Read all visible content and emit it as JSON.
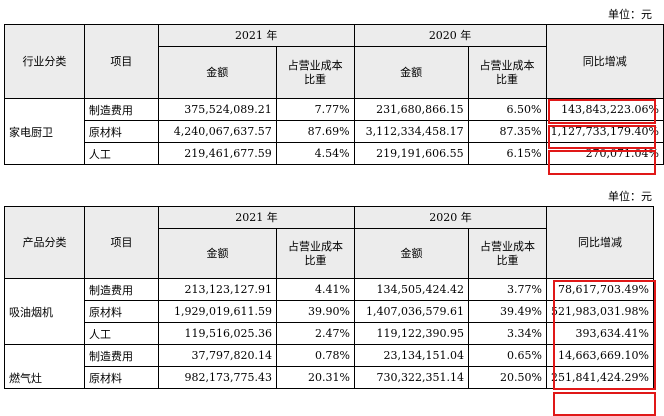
{
  "unit_label": "单位：元",
  "table1": {
    "headers": {
      "category": "行业分类",
      "item": "项目",
      "year_a": "2021 年",
      "year_b": "2020 年",
      "amount": "金额",
      "ratio_line1": "占营业成本",
      "ratio_line2": "比重",
      "yoy": "同比增减"
    },
    "groups": [
      {
        "category": "家电厨卫",
        "rows": [
          {
            "item": "制造费用",
            "amount_2021": "375,524,089.21",
            "ratio_2021": "7.77%",
            "amount_2020": "231,680,866.15",
            "ratio_2020": "6.50%",
            "yoy": "143,843,223.06%"
          },
          {
            "item": "原材料",
            "amount_2021": "4,240,067,637.57",
            "ratio_2021": "87.69%",
            "amount_2020": "3,112,334,458.17",
            "ratio_2020": "87.35%",
            "yoy": "1,127,733,179.40%"
          },
          {
            "item": "人工",
            "amount_2021": "219,461,677.59",
            "ratio_2021": "4.54%",
            "amount_2020": "219,191,606.55",
            "ratio_2020": "6.15%",
            "yoy": "270,071.04%"
          }
        ]
      }
    ]
  },
  "table2": {
    "headers": {
      "category": "产品分类",
      "item": "项目",
      "year_a": "2021 年",
      "year_b": "2020 年",
      "amount": "金额",
      "ratio_line1": "占营业成本",
      "ratio_line2": "比重",
      "yoy": "同比增减"
    },
    "groups": [
      {
        "category": "吸油烟机",
        "rows": [
          {
            "item": "制造费用",
            "amount_2021": "213,123,127.91",
            "ratio_2021": "4.41%",
            "amount_2020": "134,505,424.42",
            "ratio_2020": "3.77%",
            "yoy": "78,617,703.49%"
          },
          {
            "item": "原材料",
            "amount_2021": "1,929,019,611.59",
            "ratio_2021": "39.90%",
            "amount_2020": "1,407,036,579.61",
            "ratio_2020": "39.49%",
            "yoy": "521,983,031.98%"
          },
          {
            "item": "人工",
            "amount_2021": "119,516,025.36",
            "ratio_2021": "2.47%",
            "amount_2020": "119,122,390.95",
            "ratio_2020": "3.34%",
            "yoy": "393,634.41%"
          }
        ]
      },
      {
        "category": "燃气灶",
        "rows": [
          {
            "item": "制造费用",
            "amount_2021": "37,797,820.14",
            "ratio_2021": "0.78%",
            "amount_2020": "23,134,151.04",
            "ratio_2020": "0.65%",
            "yoy": "14,663,669.10%"
          },
          {
            "item": "原材料",
            "amount_2021": "982,173,775.43",
            "ratio_2021": "20.31%",
            "amount_2020": "730,322,351.14",
            "ratio_2020": "20.50%",
            "yoy": "251,841,424.29%"
          }
        ]
      }
    ]
  },
  "highlight_color": "#e01818"
}
